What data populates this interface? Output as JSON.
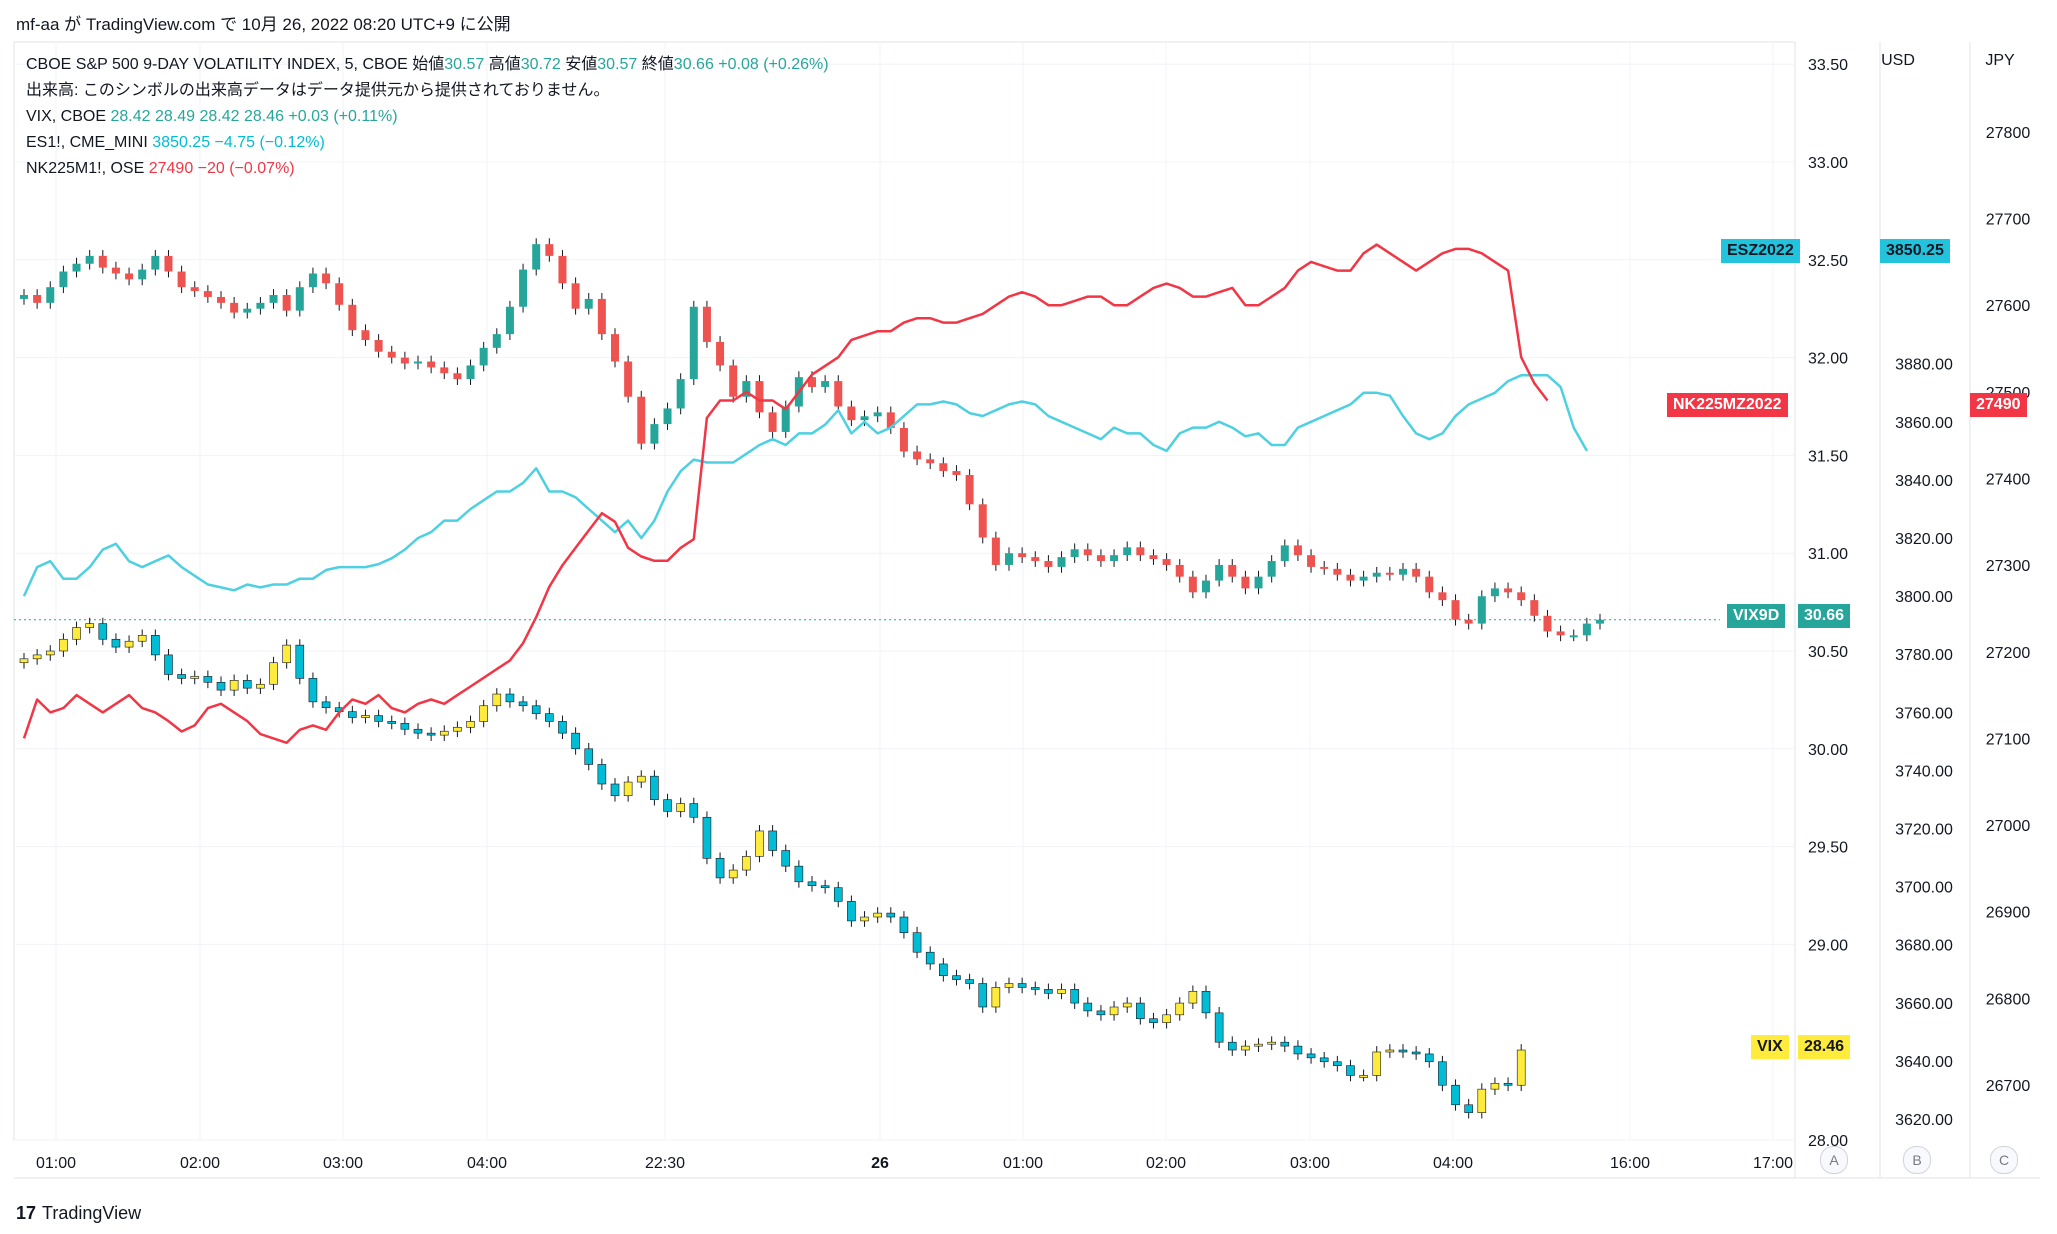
{
  "header": {
    "published": "mf-aa が TradingView.com で 10月 26, 2022 08:20 UTC+9 に公開"
  },
  "legend": {
    "main": {
      "name": "CBOE S&P 500 9-DAY VOLATILITY INDEX, 5, CBOE",
      "open_label": "始値",
      "open": "30.57",
      "high_label": "高値",
      "high": "30.72",
      "low_label": "安値",
      "low": "30.57",
      "close_label": "終値",
      "close": "30.66",
      "change": "+0.08 (+0.26%)"
    },
    "volume_note": "出来高: このシンボルの出来高データはデータ提供元から提供されておりません。",
    "vix": {
      "name": "VIX, CBOE",
      "values": "28.42  28.49  28.42  28.46  +0.03 (+0.11%)"
    },
    "es": {
      "name": "ES1!, CME_MINI",
      "values": "3850.25  −4.75 (−0.12%)"
    },
    "nk": {
      "name": "NK225M1!, OSE",
      "values": "27490  −20 (−0.07%)"
    }
  },
  "axes": {
    "right_usd_header": "USD",
    "right_jpy_header": "JPY",
    "scale_buttons": [
      "A",
      "B",
      "C"
    ]
  },
  "badges": {
    "esz": {
      "label": "ESZ2022",
      "value": "3850.25"
    },
    "nk": {
      "label": "NK225MZ2022",
      "value": "27490"
    },
    "vix9d": {
      "label": "VIX9D",
      "value": "30.66"
    },
    "vix": {
      "label": "VIX",
      "value": "28.46"
    }
  },
  "footer": {
    "brand": "TradingView",
    "logo": "17"
  },
  "colors": {
    "up": "#26a69a",
    "down": "#ef5350",
    "vix_up": "#ffeb3b",
    "vix_down": "#00bcd4",
    "es_line": "#4dd0e1",
    "nk_line": "#f23645",
    "grid": "#f0f3fa"
  },
  "chart_data": {
    "type": "line",
    "x_tick_labels": [
      "01:00",
      "02:00",
      "03:00",
      "04:00",
      "22:30",
      "26",
      "01:00",
      "02:00",
      "03:00",
      "04:00",
      "16:00",
      "17:00"
    ],
    "scales": {
      "vix_price": {
        "ticks": [
          "33.50",
          "33.00",
          "32.50",
          "32.00",
          "31.50",
          "31.00",
          "30.50",
          "30.00",
          "29.50",
          "29.00",
          "28.00"
        ],
        "range": [
          28.0,
          33.5
        ]
      },
      "usd": {
        "ticks": [
          "3880.00",
          "3860.00",
          "3840.00",
          "3820.00",
          "3800.00",
          "3780.00",
          "3760.00",
          "3740.00",
          "3720.00",
          "3700.00",
          "3680.00",
          "3660.00",
          "3640.00",
          "3620.00"
        ],
        "range": [
          3620,
          3880
        ]
      },
      "jpy": {
        "ticks": [
          "27800",
          "27700",
          "27600",
          "27500",
          "27400",
          "27300",
          "27200",
          "27100",
          "27000",
          "26900",
          "26800",
          "26700"
        ],
        "range": [
          26700,
          27800
        ]
      }
    },
    "series": [
      {
        "name": "VIX9D",
        "kind": "candles",
        "closes": [
          32.32,
          32.28,
          32.36,
          32.44,
          32.48,
          32.52,
          32.46,
          32.43,
          32.4,
          32.45,
          32.52,
          32.44,
          32.36,
          32.34,
          32.31,
          32.28,
          32.23,
          32.25,
          32.28,
          32.32,
          32.24,
          32.36,
          32.43,
          32.38,
          32.27,
          32.14,
          32.09,
          32.03,
          32.0,
          31.97,
          31.98,
          31.95,
          31.92,
          31.89,
          31.96,
          32.05,
          32.12,
          32.26,
          32.45,
          32.58,
          32.52,
          32.38,
          32.25,
          32.3,
          32.12,
          31.98,
          31.8,
          31.56,
          31.66,
          31.74,
          31.89,
          32.26,
          32.08,
          31.96,
          31.8,
          31.88,
          31.72,
          31.62,
          31.75,
          31.9,
          31.85,
          31.88,
          31.75,
          31.68,
          31.7,
          31.72,
          31.64,
          31.52,
          31.48,
          31.46,
          31.42,
          31.4,
          31.25,
          31.08,
          30.94,
          31.0,
          30.98,
          30.96,
          30.93,
          30.98,
          31.02,
          30.99,
          30.96,
          30.99,
          31.03,
          30.99,
          30.97,
          30.94,
          30.88,
          30.8,
          30.86,
          30.94,
          30.88,
          30.82,
          30.88,
          30.96,
          31.04,
          30.99,
          30.93,
          30.92,
          30.89,
          30.86,
          30.88,
          30.9,
          30.89,
          30.92,
          30.88,
          30.8,
          30.76,
          30.66,
          30.64,
          30.78,
          30.82,
          30.8,
          30.76,
          30.68,
          30.6,
          30.58,
          30.58,
          30.64,
          30.66
        ]
      },
      {
        "name": "VIX",
        "kind": "candles",
        "closes": [
          30.46,
          30.48,
          30.5,
          30.56,
          30.62,
          30.64,
          30.56,
          30.52,
          30.55,
          30.58,
          30.48,
          30.38,
          30.36,
          30.37,
          30.34,
          30.3,
          30.35,
          30.31,
          30.33,
          30.44,
          30.53,
          30.36,
          30.24,
          30.21,
          30.19,
          30.16,
          30.17,
          30.14,
          30.13,
          30.1,
          30.08,
          30.07,
          30.09,
          30.11,
          30.14,
          30.22,
          30.28,
          30.24,
          30.22,
          30.18,
          30.14,
          30.08,
          30.0,
          29.92,
          29.82,
          29.76,
          29.83,
          29.86,
          29.74,
          29.68,
          29.72,
          29.65,
          29.44,
          29.34,
          29.38,
          29.45,
          29.58,
          29.48,
          29.4,
          29.32,
          29.3,
          29.29,
          29.22,
          29.12,
          29.14,
          29.16,
          29.14,
          29.06,
          28.96,
          28.9,
          28.84,
          28.82,
          28.8,
          28.68,
          28.78,
          28.8,
          28.78,
          28.77,
          28.75,
          28.77,
          28.7,
          28.66,
          28.64,
          28.68,
          28.7,
          28.62,
          28.6,
          28.64,
          28.7,
          28.76,
          28.65,
          28.5,
          28.46,
          28.48,
          28.49,
          28.5,
          28.48,
          28.44,
          28.42,
          28.4,
          28.38,
          28.33,
          28.33,
          28.45,
          28.46,
          28.45,
          28.44,
          28.4,
          28.28,
          28.18,
          28.14,
          28.26,
          28.29,
          28.28,
          28.46
        ]
      },
      {
        "name": "ESZ2022",
        "kind": "line",
        "values": [
          3800,
          3810,
          3812,
          3806,
          3806,
          3810,
          3816,
          3818,
          3812,
          3810,
          3812,
          3814,
          3810,
          3807,
          3804,
          3803,
          3802,
          3804,
          3803,
          3804,
          3804,
          3806,
          3806,
          3809,
          3810,
          3810,
          3810,
          3811,
          3813,
          3816,
          3820,
          3822,
          3826,
          3826,
          3830,
          3833,
          3836,
          3836,
          3839,
          3844,
          3836,
          3836,
          3834,
          3830,
          3826,
          3822,
          3826,
          3820,
          3826,
          3836,
          3843,
          3847,
          3846,
          3846,
          3846,
          3849,
          3852,
          3854,
          3852,
          3856,
          3856,
          3859,
          3864,
          3856,
          3860,
          3856,
          3858,
          3862,
          3866,
          3866,
          3867,
          3866,
          3863,
          3862,
          3864,
          3866,
          3867,
          3866,
          3862,
          3860,
          3858,
          3856,
          3854,
          3858,
          3856,
          3856,
          3852,
          3850,
          3856,
          3858,
          3858,
          3860,
          3858,
          3855,
          3856,
          3852,
          3852,
          3858,
          3860,
          3862,
          3864,
          3866,
          3870,
          3870,
          3869,
          3862,
          3856,
          3854,
          3856,
          3862,
          3866,
          3868,
          3870,
          3874,
          3876,
          3876,
          3876,
          3872,
          3858,
          3850
        ]
      },
      {
        "name": "NK225MZ2022",
        "kind": "line",
        "values": [
          27100,
          27145,
          27130,
          27135,
          27150,
          27140,
          27130,
          27140,
          27150,
          27135,
          27130,
          27120,
          27108,
          27115,
          27135,
          27140,
          27130,
          27120,
          27105,
          27100,
          27095,
          27110,
          27115,
          27110,
          27130,
          27145,
          27140,
          27150,
          27135,
          27130,
          27140,
          27145,
          27140,
          27150,
          27160,
          27170,
          27180,
          27190,
          27210,
          27240,
          27275,
          27300,
          27320,
          27340,
          27360,
          27350,
          27320,
          27310,
          27305,
          27305,
          27320,
          27330,
          27470,
          27490,
          27490,
          27500,
          27490,
          27490,
          27480,
          27500,
          27520,
          27530,
          27540,
          27560,
          27565,
          27570,
          27570,
          27580,
          27585,
          27585,
          27580,
          27580,
          27585,
          27590,
          27600,
          27610,
          27615,
          27610,
          27600,
          27600,
          27605,
          27610,
          27610,
          27600,
          27600,
          27610,
          27620,
          27625,
          27620,
          27610,
          27610,
          27615,
          27620,
          27600,
          27600,
          27610,
          27620,
          27640,
          27650,
          27645,
          27640,
          27640,
          27660,
          27670,
          27660,
          27650,
          27640,
          27650,
          27660,
          27665,
          27665,
          27660,
          27650,
          27640,
          27540,
          27510,
          27490
        ]
      }
    ]
  }
}
